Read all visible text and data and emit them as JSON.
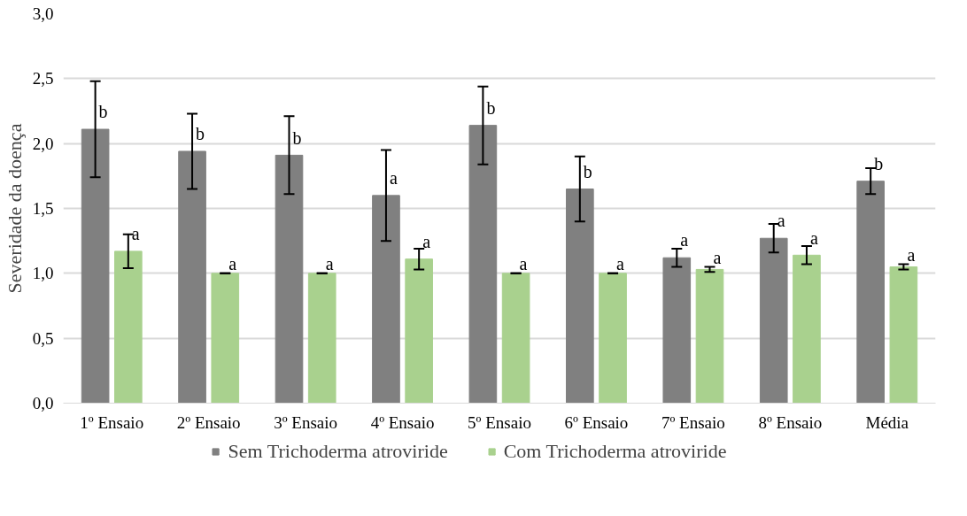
{
  "chart_data": {
    "type": "bar",
    "ylabel": "Severidade da doença",
    "categories": [
      "1º Ensaio",
      "2º Ensaio",
      "3º Ensaio",
      "4º Ensaio",
      "5º Ensaio",
      "6º Ensaio",
      "7º Ensaio",
      "8º Ensaio",
      "Média"
    ],
    "series": [
      {
        "name": "Sem Trichoderma atroviride",
        "color": "#808080",
        "values": [
          2.11,
          1.94,
          1.91,
          1.6,
          2.14,
          1.65,
          1.12,
          1.27,
          1.71
        ],
        "errors": [
          0.37,
          0.29,
          0.3,
          0.35,
          0.3,
          0.25,
          0.07,
          0.11,
          0.1
        ],
        "value_labels": [
          "b",
          "b",
          "b",
          "a",
          "b",
          "b",
          "a",
          "a",
          "b"
        ]
      },
      {
        "name": "Com Trichoderma atroviride",
        "color": "#a9d18e",
        "values": [
          1.17,
          1.0,
          1.0,
          1.11,
          1.0,
          1.0,
          1.03,
          1.14,
          1.05
        ],
        "errors": [
          0.13,
          0,
          0,
          0.08,
          0,
          0,
          0.02,
          0.07,
          0.02
        ],
        "value_labels": [
          "a",
          "a",
          "a",
          "a",
          "a",
          "a",
          "a",
          "a",
          "a"
        ]
      }
    ],
    "ylim": [
      0,
      3
    ],
    "yticks": [
      {
        "value": 0,
        "label": "0,0"
      },
      {
        "value": 0.5,
        "label": "0,5"
      },
      {
        "value": 1,
        "label": "1,0"
      },
      {
        "value": 1.5,
        "label": "1,5"
      },
      {
        "value": 2,
        "label": "2,0"
      },
      {
        "value": 2.5,
        "label": "2,5"
      },
      {
        "value": 3,
        "label": "3,0"
      }
    ],
    "grid": "y",
    "legend": "bottom"
  }
}
